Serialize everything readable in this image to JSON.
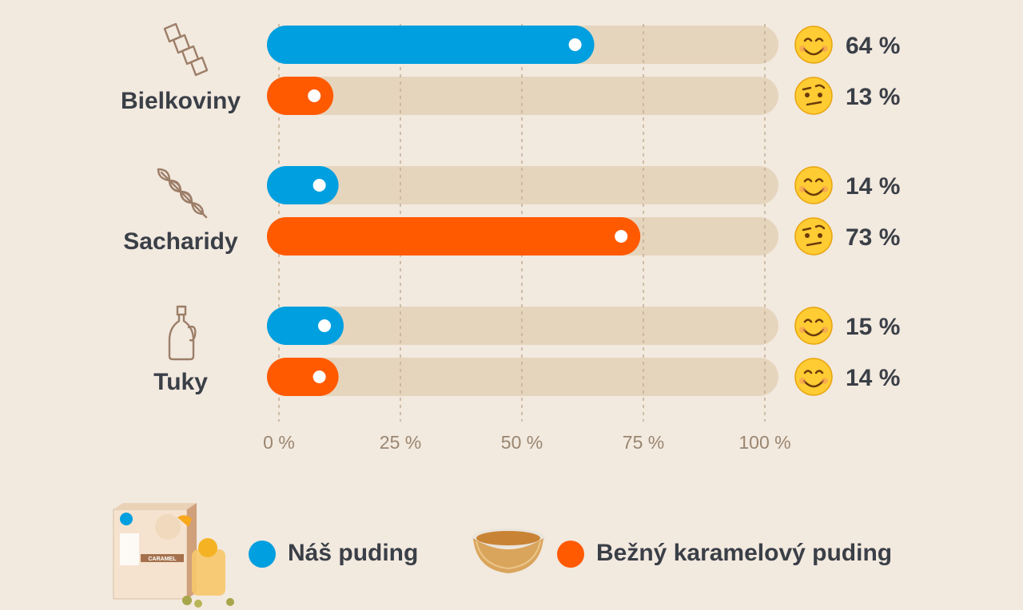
{
  "chart_data": {
    "type": "bar",
    "orientation": "horizontal",
    "categories": [
      "Bielkoviny",
      "Sacharidy",
      "Tuky"
    ],
    "category_icons": [
      "pasta-icon",
      "wheat-icon",
      "oil-bottle-icon"
    ],
    "series": [
      {
        "name": "Náš puding",
        "color": "#009fdf",
        "values": [
          64,
          14,
          15
        ],
        "labels": [
          "64 %",
          "14 %",
          "15 %"
        ],
        "emoji": [
          "smile",
          "smile",
          "smile"
        ]
      },
      {
        "name": "Bežný karamelový puding",
        "color": "#ff5a00",
        "values": [
          13,
          73,
          14
        ],
        "labels": [
          "13 %",
          "73 %",
          "14 %"
        ],
        "emoji": [
          "raised-eyebrow",
          "raised-eyebrow",
          "smile"
        ]
      }
    ],
    "xlim": [
      0,
      100
    ],
    "ticks": [
      0,
      25,
      50,
      75,
      100
    ],
    "tick_labels": [
      "0 %",
      "25 %",
      "50 %",
      "75 %",
      "100 %"
    ],
    "grid": true,
    "legend_position": "bottom",
    "track_color": "#e6d5bd"
  },
  "legend": {
    "items": [
      {
        "label": "Náš puding",
        "color": "#009fdf"
      },
      {
        "label": "Bežný karamelový puding",
        "color": "#ff5a00"
      }
    ]
  },
  "product_image_text": "CARAMEL"
}
